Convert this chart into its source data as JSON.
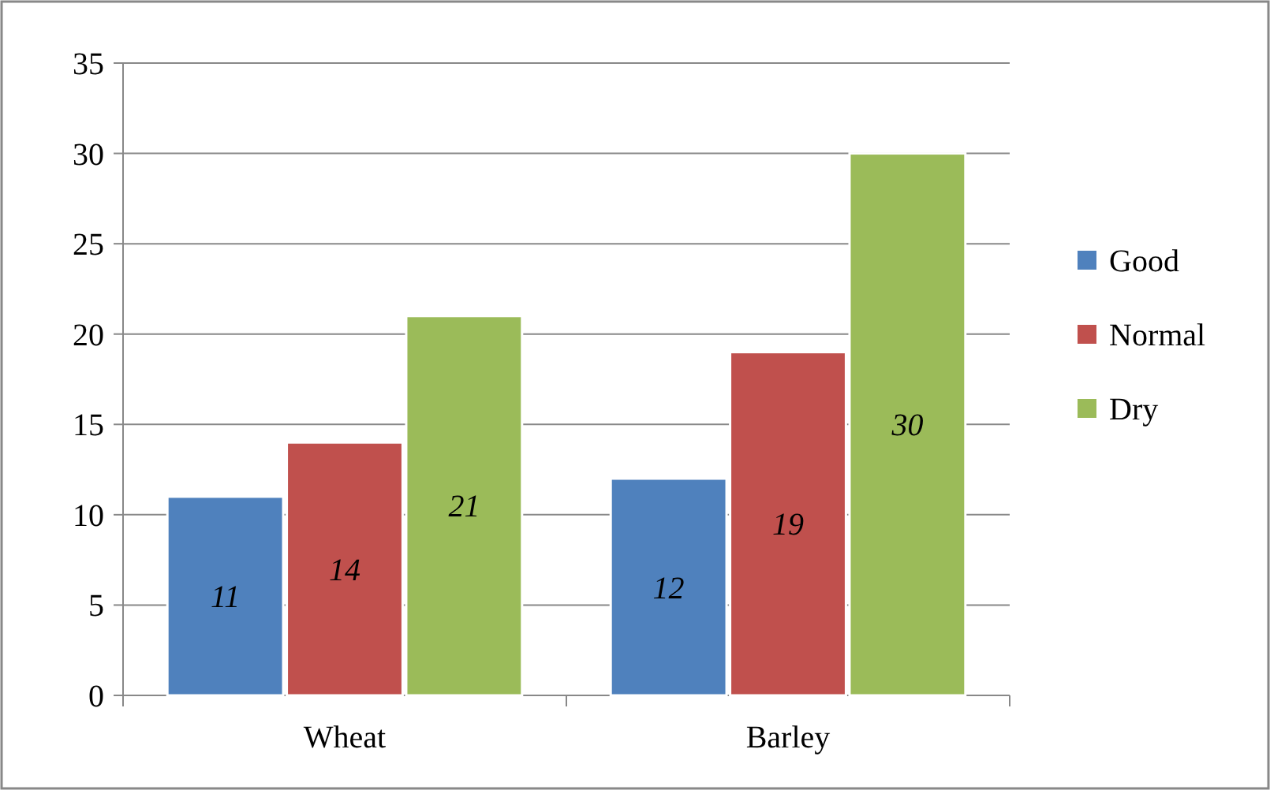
{
  "chart_data": {
    "type": "bar",
    "categories": [
      "Wheat",
      "Barley"
    ],
    "series": [
      {
        "name": "Good",
        "color": "#4f81bd",
        "values": [
          11,
          12
        ]
      },
      {
        "name": "Normal",
        "color": "#c0504d",
        "values": [
          14,
          19
        ]
      },
      {
        "name": "Dry",
        "color": "#9bbb59",
        "values": [
          21,
          30
        ]
      }
    ],
    "ylim": [
      0,
      35
    ],
    "yticks": [
      0,
      5,
      10,
      15,
      20,
      25,
      30,
      35
    ],
    "grid": "y",
    "legend": "right",
    "data_labels": true
  }
}
